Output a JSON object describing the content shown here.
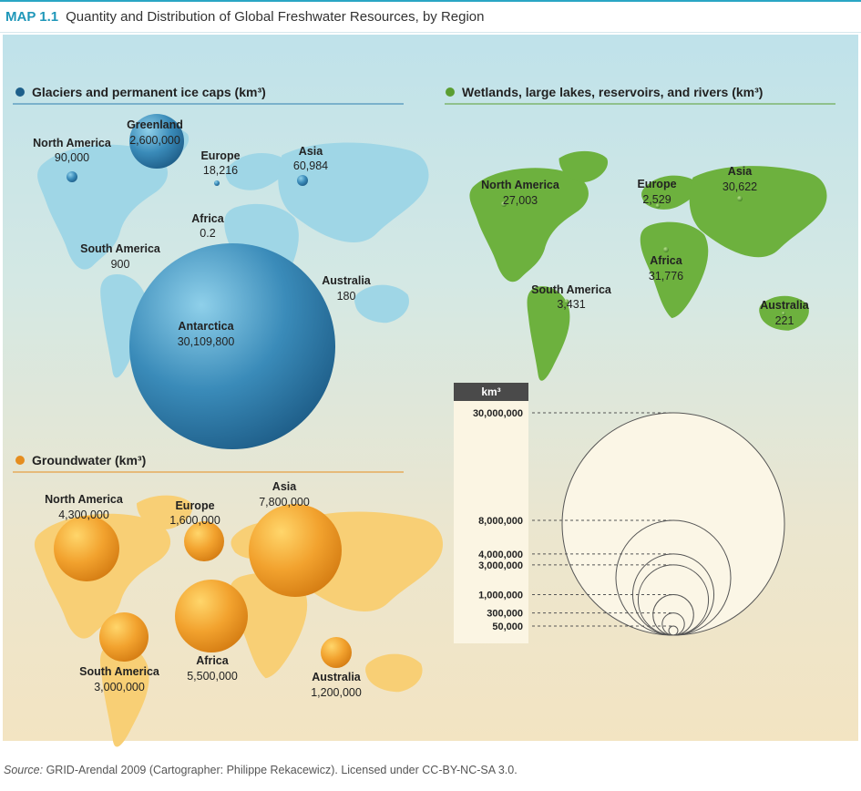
{
  "header": {
    "tag": "MAP 1.1",
    "title": "Quantity and Distribution of Global Freshwater Resources, by Region"
  },
  "colors": {
    "glacier": "#2f7fae",
    "glacier_land": "#9fd6e6",
    "wetland": "#6db13e",
    "ground": "#f2a22e",
    "ground_land": "#f8cf75"
  },
  "sections": {
    "glaciers": {
      "title": "Glaciers and permanent ice caps (km³)",
      "regions": [
        {
          "name": "Greenland",
          "value": "2,600,000",
          "km3": 2600000
        },
        {
          "name": "North America",
          "value": "90,000",
          "km3": 90000
        },
        {
          "name": "Europe",
          "value": "18,216",
          "km3": 18216
        },
        {
          "name": "Asia",
          "value": "60,984",
          "km3": 60984
        },
        {
          "name": "Africa",
          "value": "0.2",
          "km3": 0.2
        },
        {
          "name": "South America",
          "value": "900",
          "km3": 900
        },
        {
          "name": "Australia",
          "value": "180",
          "km3": 180
        },
        {
          "name": "Antarctica",
          "value": "30,109,800",
          "km3": 30109800
        }
      ]
    },
    "wetlands": {
      "title": "Wetlands, large lakes, reservoirs, and rivers (km³)",
      "regions": [
        {
          "name": "North America",
          "value": "27,003",
          "km3": 27003
        },
        {
          "name": "Europe",
          "value": "2,529",
          "km3": 2529
        },
        {
          "name": "Asia",
          "value": "30,622",
          "km3": 30622
        },
        {
          "name": "Africa",
          "value": "31,776",
          "km3": 31776
        },
        {
          "name": "South America",
          "value": "3,431",
          "km3": 3431
        },
        {
          "name": "Australia",
          "value": "221",
          "km3": 221
        }
      ]
    },
    "groundwater": {
      "title": "Groundwater (km³)",
      "regions": [
        {
          "name": "North America",
          "value": "4,300,000",
          "km3": 4300000
        },
        {
          "name": "Europe",
          "value": "1,600,000",
          "km3": 1600000
        },
        {
          "name": "Asia",
          "value": "7,800,000",
          "km3": 7800000
        },
        {
          "name": "South America",
          "value": "3,000,000",
          "km3": 3000000
        },
        {
          "name": "Africa",
          "value": "5,500,000",
          "km3": 5500000
        },
        {
          "name": "Australia",
          "value": "1,200,000",
          "km3": 1200000
        }
      ]
    }
  },
  "legend": {
    "unit": "km³",
    "entries": [
      {
        "label": "30,000,000",
        "km3": 30000000
      },
      {
        "label": "8,000,000",
        "km3": 8000000
      },
      {
        "label": "4,000,000",
        "km3": 4000000
      },
      {
        "label": "3,000,000",
        "km3": 3000000
      },
      {
        "label": "1,000,000",
        "km3": 1000000
      },
      {
        "label": "300,000",
        "km3": 300000
      },
      {
        "label": "50,000",
        "km3": 50000
      }
    ]
  },
  "source": {
    "prefix": "Source:",
    "text": " GRID-Arendal 2009 (Cartographer: Philippe Rekacewicz). Licensed under CC-BY-NC-SA 3.0."
  }
}
